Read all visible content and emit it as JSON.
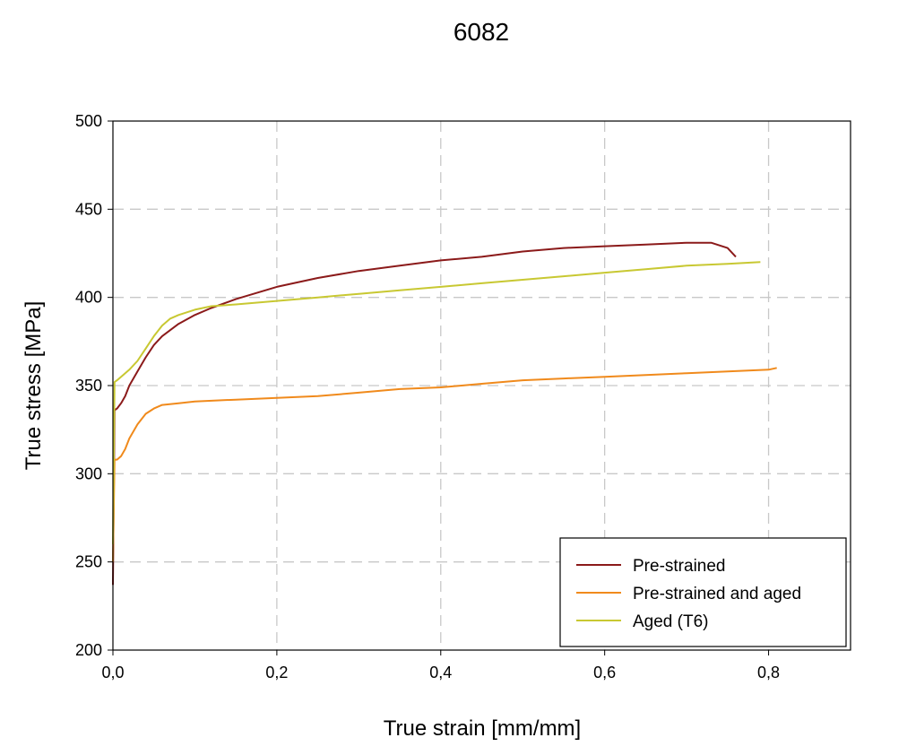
{
  "chart_data": {
    "type": "line",
    "title": "6082",
    "xlabel": "True strain [mm/mm]",
    "ylabel": "True stress [MPa]",
    "xlim": [
      0,
      0.9
    ],
    "ylim": [
      200,
      500
    ],
    "xticks": [
      0,
      0.2,
      0.4,
      0.6,
      0.8
    ],
    "yticks": [
      200,
      250,
      300,
      350,
      400,
      450,
      500
    ],
    "xtick_labels": [
      "0,0",
      "0,2",
      "0,4",
      "0,6",
      "0,8"
    ],
    "ytick_labels": [
      "200",
      "250",
      "300",
      "350",
      "400",
      "450",
      "500"
    ],
    "grid": true,
    "legend_position": "bottom-right",
    "series": [
      {
        "name": "Pre-strained",
        "color": "#8b1a1a",
        "x": [
          0.0,
          0.002,
          0.005,
          0.01,
          0.015,
          0.02,
          0.03,
          0.04,
          0.05,
          0.06,
          0.08,
          0.1,
          0.12,
          0.15,
          0.2,
          0.25,
          0.3,
          0.35,
          0.4,
          0.45,
          0.5,
          0.55,
          0.6,
          0.65,
          0.7,
          0.73,
          0.75,
          0.76
        ],
        "y": [
          237,
          336,
          337,
          340,
          344,
          350,
          358,
          366,
          373,
          378,
          385,
          390,
          394,
          399,
          406,
          411,
          415,
          418,
          421,
          423,
          426,
          428,
          429,
          430,
          431,
          431,
          428,
          423
        ]
      },
      {
        "name": "Pre-strained and aged",
        "color": "#f08a1c",
        "x": [
          0.0,
          0.002,
          0.005,
          0.01,
          0.015,
          0.02,
          0.03,
          0.04,
          0.05,
          0.06,
          0.08,
          0.1,
          0.15,
          0.2,
          0.25,
          0.3,
          0.35,
          0.4,
          0.45,
          0.5,
          0.55,
          0.6,
          0.65,
          0.7,
          0.75,
          0.8,
          0.81
        ],
        "y": [
          250,
          308,
          308,
          310,
          314,
          320,
          328,
          334,
          337,
          339,
          340,
          341,
          342,
          343,
          344,
          346,
          348,
          349,
          351,
          353,
          354,
          355,
          356,
          357,
          358,
          359,
          360
        ]
      },
      {
        "name": "Aged (T6)",
        "color": "#c8c832",
        "x": [
          0.0,
          0.002,
          0.005,
          0.01,
          0.02,
          0.03,
          0.04,
          0.05,
          0.06,
          0.07,
          0.08,
          0.1,
          0.12,
          0.15,
          0.2,
          0.25,
          0.3,
          0.35,
          0.4,
          0.45,
          0.5,
          0.55,
          0.6,
          0.65,
          0.7,
          0.75,
          0.79
        ],
        "y": [
          260,
          352,
          353,
          355,
          359,
          364,
          371,
          378,
          384,
          388,
          390,
          393,
          395,
          396,
          398,
          400,
          402,
          404,
          406,
          408,
          410,
          412,
          414,
          416,
          418,
          419,
          420
        ]
      }
    ]
  }
}
